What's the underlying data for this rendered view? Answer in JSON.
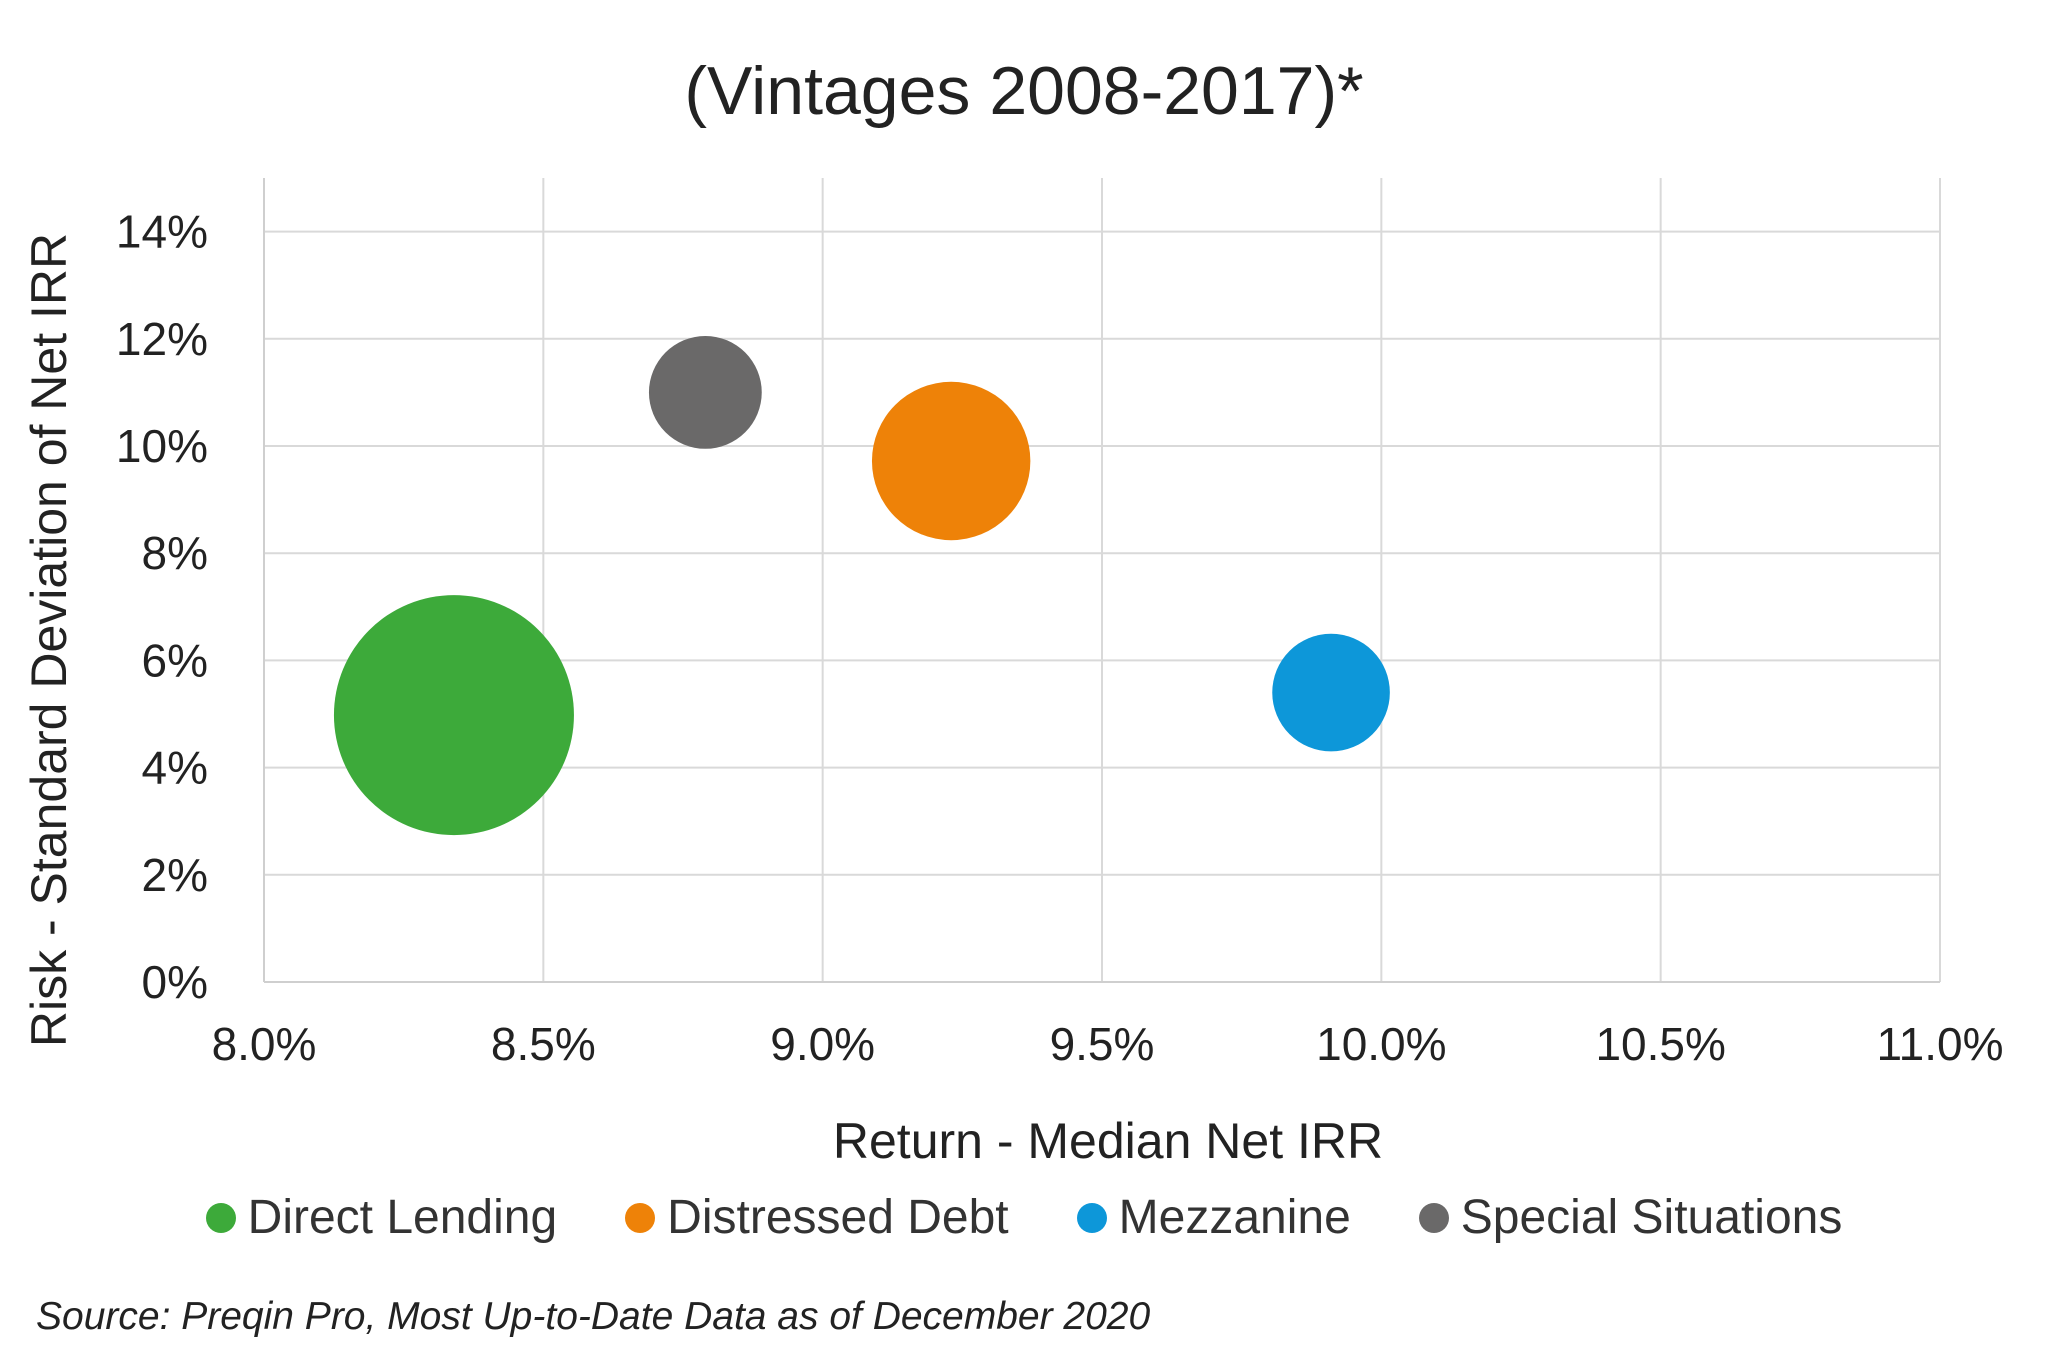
{
  "chart_data": {
    "type": "bubble",
    "title": "(Vintages 2008-2017)*",
    "xlabel": "Return - Median Net IRR",
    "ylabel": "Risk - Standard Deviation of Net IRR",
    "xlim": [
      8.0,
      11.0
    ],
    "ylim": [
      0,
      15
    ],
    "x_ticks": [
      "8.0%",
      "8.5%",
      "9.0%",
      "9.5%",
      "10.0%",
      "10.5%",
      "11.0%"
    ],
    "y_ticks": [
      "0%",
      "2%",
      "4%",
      "6%",
      "8%",
      "10%",
      "12%",
      "14%"
    ],
    "grid": true,
    "legend_position": "bottom",
    "series": [
      {
        "name": "Direct Lending",
        "x": 8.34,
        "y": 4.98,
        "relative_size": 1.0,
        "color": "#3daa3a"
      },
      {
        "name": "Distressed Debt",
        "x": 9.23,
        "y": 9.72,
        "relative_size": 0.66,
        "color": "#ee8208"
      },
      {
        "name": "Mezzanine",
        "x": 9.91,
        "y": 5.4,
        "relative_size": 0.49,
        "color": "#0d97d9"
      },
      {
        "name": "Special Situations",
        "x": 8.79,
        "y": 11.0,
        "relative_size": 0.47,
        "color": "#6a6969"
      }
    ]
  },
  "source": "Source: Preqin Pro, Most Up-to-Date Data as of December 2020"
}
